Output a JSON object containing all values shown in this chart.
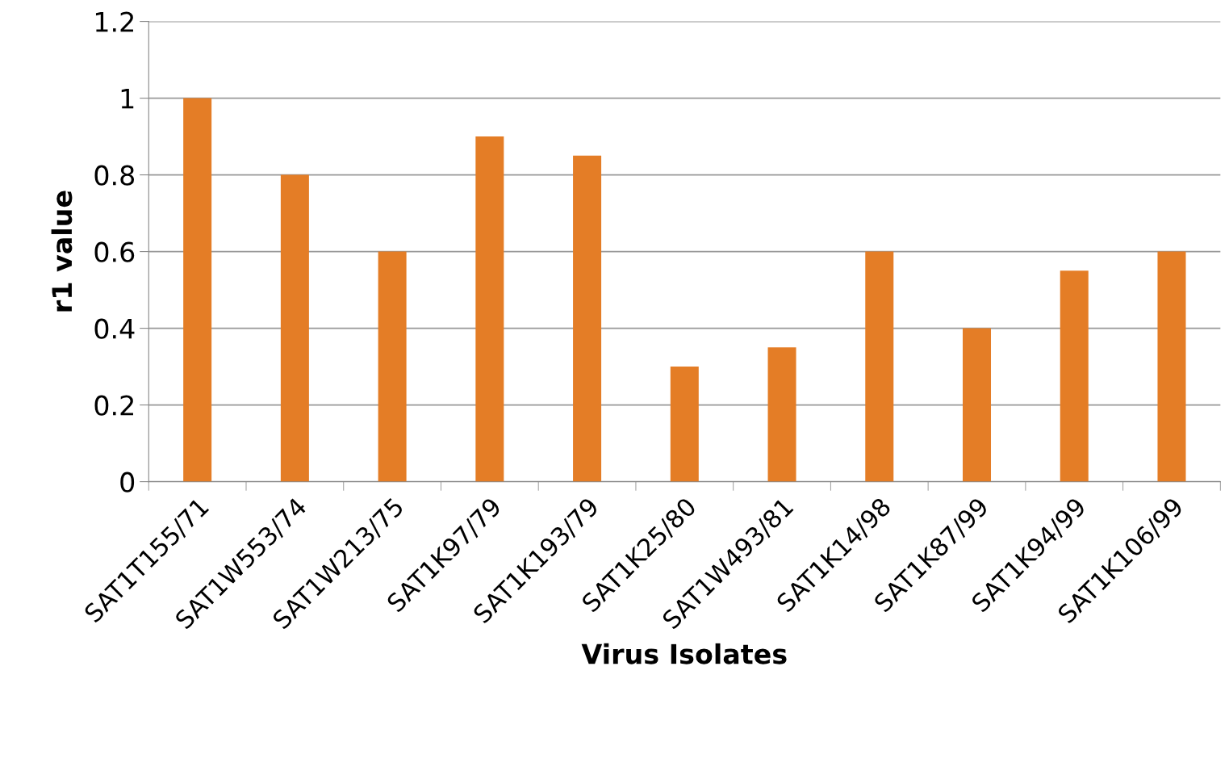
{
  "chart_data": {
    "type": "bar",
    "xlabel": "Virus Isolates",
    "ylabel": "r1 value",
    "categories": [
      "SAT1T155/71",
      "SAT1W553/74",
      "SAT1W213/75",
      "SAT1K97/79",
      "SAT1K193/79",
      "SAT1K25/80",
      "SAT1W493/81",
      "SAT1K14/98",
      "SAT1K87/99",
      "SAT1K94/99",
      "SAT1K106/99"
    ],
    "values": [
      1,
      0.8,
      0.6,
      0.9,
      0.85,
      0.3,
      0.35,
      0.6,
      0.4,
      0.55,
      0.6
    ],
    "color": "#e47d26",
    "ylim": [
      0,
      1.2
    ],
    "yticks": [
      0,
      {
        "value": 0.2,
        "label": "0.2"
      },
      {
        "value": 0.4,
        "label": "0.4"
      },
      {
        "value": 0.6,
        "label": "0.6"
      },
      {
        "value": 0.8,
        "label": "0.8"
      },
      1,
      {
        "value": 1.2,
        "label": "1.2"
      }
    ],
    "grid": "y"
  }
}
